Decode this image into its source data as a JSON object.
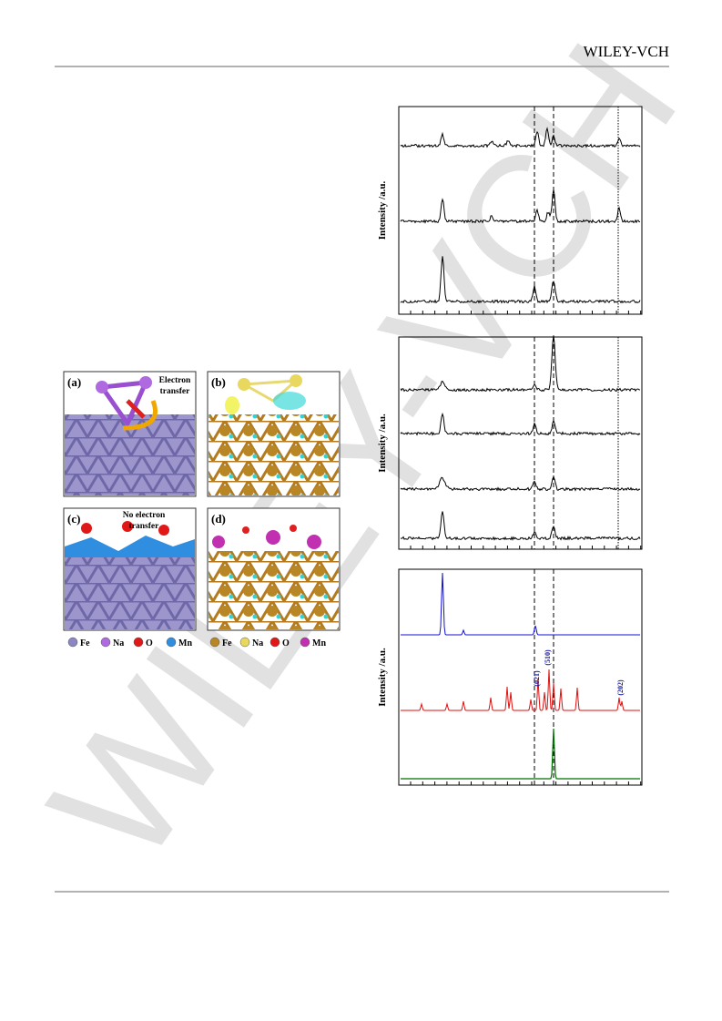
{
  "header": {
    "publisher": "WILEY-VCH"
  },
  "figure_left": {
    "panels": [
      {
        "label": "(a)",
        "note": [
          "Electron",
          "transfer"
        ]
      },
      {
        "label": "(b)"
      },
      {
        "label": "(c)",
        "note": [
          "No electron",
          "transfer"
        ]
      },
      {
        "label": "(d)"
      }
    ],
    "legends": [
      [
        "Fe",
        "Na",
        "O",
        "Mn"
      ],
      [
        "Fe",
        "Na",
        "O",
        "Mn"
      ]
    ]
  },
  "figure_right": {
    "y_labels": [
      "Intensity /a.u.",
      "Intensity /a.u.",
      "Intensity /a.u."
    ],
    "peak_labels": [
      "(021)",
      "(510)",
      "(202)"
    ]
  },
  "watermark": "WILEY-VCH"
}
